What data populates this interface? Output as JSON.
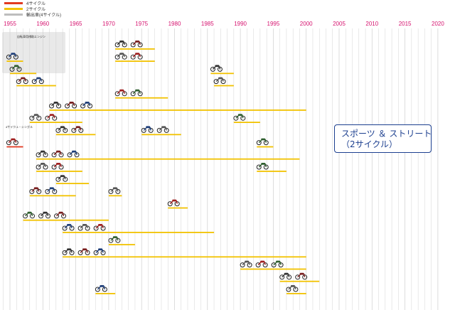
{
  "legend": [
    {
      "label": "4サイクル",
      "color": "#e23a22"
    },
    {
      "label": "2サイクル",
      "color": "#f2c200"
    },
    {
      "label": "輸出車(4サイクル)",
      "color": "#bdbdbd"
    }
  ],
  "colors": {
    "year_axis": "#d6136f",
    "gridline": "#cfcfcf",
    "group_box": "#e9e9e9",
    "category_border": "#1c3f8f"
  },
  "group_labels": [
    "自転車用補助エンジン",
    "4サイクル・シングル"
  ],
  "category": {
    "line1": "スポーツ ＆ ストリート",
    "line2": "（2サイクル）"
  },
  "chart_data": {
    "type": "timeline",
    "xlabel": "",
    "ylabel": "",
    "x_ticks": [
      1955,
      1960,
      1965,
      1970,
      1975,
      1980,
      1985,
      1990,
      1995,
      2000,
      2005,
      2010,
      2015,
      2020
    ],
    "xlim": [
      1954,
      2020
    ],
    "grid": true,
    "legend_position": "top-left",
    "model_lines": [
      {
        "row": 1,
        "start": 1971,
        "end": 1977,
        "kind": "2サイクル"
      },
      {
        "row": 2,
        "start": 1954.5,
        "end": 1957,
        "kind": "2サイクル"
      },
      {
        "row": 2,
        "start": 1971,
        "end": 1977,
        "kind": "2サイクル"
      },
      {
        "row": 3,
        "start": 1955,
        "end": 1959,
        "kind": "2サイクル"
      },
      {
        "row": 3,
        "start": 1985.5,
        "end": 1989,
        "kind": "2サイクル"
      },
      {
        "row": 4,
        "start": 1956,
        "end": 1962,
        "kind": "2サイクル"
      },
      {
        "row": 4,
        "start": 1986,
        "end": 1989,
        "kind": "2サイクル"
      },
      {
        "row": 5,
        "start": 1971,
        "end": 1979,
        "kind": "2サイクル"
      },
      {
        "row": 6,
        "start": 1961,
        "end": 2000,
        "kind": "2サイクル"
      },
      {
        "row": 7,
        "start": 1958,
        "end": 1966,
        "kind": "2サイクル"
      },
      {
        "row": 7,
        "start": 1989,
        "end": 1993,
        "kind": "2サイクル"
      },
      {
        "row": 8,
        "start": 1962,
        "end": 1968,
        "kind": "2サイクル"
      },
      {
        "row": 8,
        "start": 1975,
        "end": 1981,
        "kind": "2サイクル"
      },
      {
        "row": 9,
        "start": 1954.5,
        "end": 1957,
        "kind": "4サイクル"
      },
      {
        "row": 9,
        "start": 1992.5,
        "end": 1995,
        "kind": "2サイクル"
      },
      {
        "row": 10,
        "start": 1959,
        "end": 1999,
        "kind": "2サイクル"
      },
      {
        "row": 11,
        "start": 1959,
        "end": 1966,
        "kind": "2サイクル"
      },
      {
        "row": 11,
        "start": 1992.5,
        "end": 1997,
        "kind": "2サイクル"
      },
      {
        "row": 12,
        "start": 1962,
        "end": 1967,
        "kind": "2サイクル"
      },
      {
        "row": 13,
        "start": 1958,
        "end": 1965,
        "kind": "2サイクル"
      },
      {
        "row": 13,
        "start": 1970,
        "end": 1972,
        "kind": "2サイクル"
      },
      {
        "row": 14,
        "start": 1979,
        "end": 1982,
        "kind": "2サイクル"
      },
      {
        "row": 15,
        "start": 1957,
        "end": 1970,
        "kind": "2サイクル"
      },
      {
        "row": 16,
        "start": 1963,
        "end": 1986,
        "kind": "2サイクル"
      },
      {
        "row": 17,
        "start": 1970,
        "end": 1974,
        "kind": "2サイクル"
      },
      {
        "row": 18,
        "start": 1963,
        "end": 2000,
        "kind": "2サイクル"
      },
      {
        "row": 19,
        "start": 1990,
        "end": 2000,
        "kind": "2サイクル"
      },
      {
        "row": 20,
        "start": 1996,
        "end": 2002,
        "kind": "2サイクル"
      },
      {
        "row": 21,
        "start": 1968,
        "end": 1971,
        "kind": "2サイクル"
      },
      {
        "row": 21,
        "start": 1997,
        "end": 2000,
        "kind": "2サイクル"
      }
    ]
  }
}
